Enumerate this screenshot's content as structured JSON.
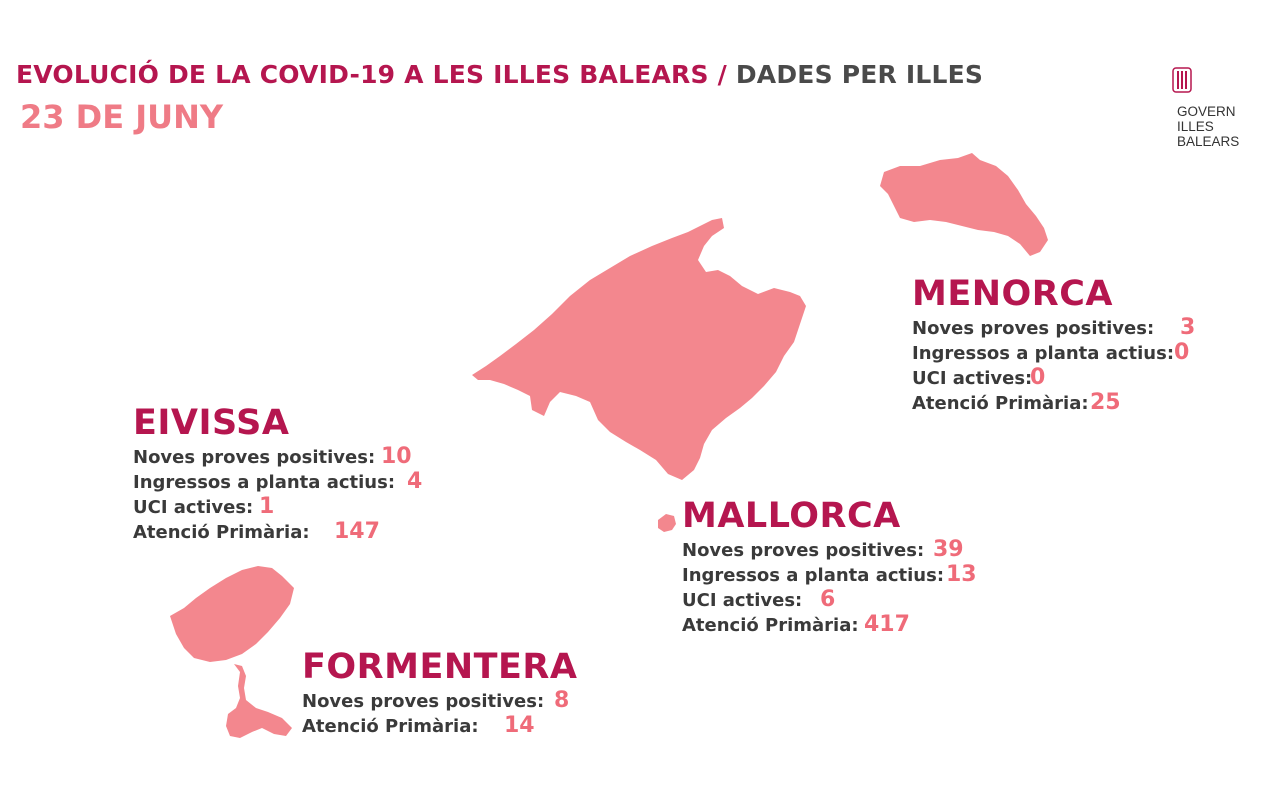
{
  "header": {
    "title_main": "EVOLUCIÓ DE LA COVID-19 A LES ILLES BALEARS",
    "title_separator": "/",
    "title_sub": "DADES PER ILLES",
    "date": "23 DE JUNY"
  },
  "logo": {
    "line1": "GOVERN",
    "line2": "ILLES",
    "line3": "BALEARS"
  },
  "colors": {
    "accent": "#b5164f",
    "island_fill": "#f3878e",
    "value": "#ef6b79",
    "label": "#3a3a3a"
  },
  "islands": {
    "menorca": {
      "name": "MENORCA",
      "stats": [
        {
          "label": "Noves proves positives:",
          "value": "3"
        },
        {
          "label": "Ingressos a planta actius:",
          "value": "0"
        },
        {
          "label": "UCI actives:",
          "value": "0"
        },
        {
          "label": "Atenció Primària:",
          "value": "25"
        }
      ]
    },
    "eivissa": {
      "name": "EIVISSA",
      "stats": [
        {
          "label": "Noves proves positives:",
          "value": "10"
        },
        {
          "label": "Ingressos a planta actius:",
          "value": "4"
        },
        {
          "label": "UCI actives:",
          "value": "1"
        },
        {
          "label": "Atenció Primària:",
          "value": "147"
        }
      ]
    },
    "mallorca": {
      "name": "MALLORCA",
      "stats": [
        {
          "label": "Noves proves positives:",
          "value": "39"
        },
        {
          "label": "Ingressos a planta actius:",
          "value": "13"
        },
        {
          "label": "UCI actives:",
          "value": "6"
        },
        {
          "label": "Atenció Primària:",
          "value": "417"
        }
      ]
    },
    "formentera": {
      "name": "FORMENTERA",
      "stats": [
        {
          "label": "Noves proves positives:",
          "value": "8"
        },
        {
          "label": "Atenció Primària:",
          "value": "14"
        }
      ]
    }
  }
}
